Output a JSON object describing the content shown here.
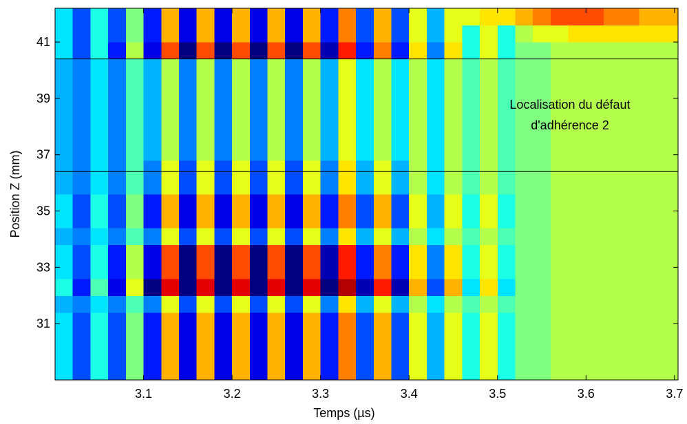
{
  "chart_data": {
    "type": "heatmap",
    "xlabel": "Temps (µs)",
    "ylabel": "Position Z (mm)",
    "xlim": [
      3.0,
      3.704
    ],
    "ylim": [
      29.0,
      42.2
    ],
    "xticks": [
      3.1,
      3.2,
      3.3,
      3.4,
      3.5,
      3.6,
      3.7
    ],
    "yticks": [
      31,
      33,
      35,
      37,
      39,
      41
    ],
    "colorscale": "jet",
    "zlim": [
      -10,
      10
    ],
    "hlines": [
      40.4,
      36.4
    ],
    "annotation": [
      "Localisation du défaut",
      "d'adhérence 2"
    ],
    "x": [
      3.01,
      3.03,
      3.05,
      3.07,
      3.09,
      3.11,
      3.13,
      3.15,
      3.17,
      3.19,
      3.21,
      3.23,
      3.25,
      3.27,
      3.29,
      3.31,
      3.33,
      3.35,
      3.37,
      3.39,
      3.41,
      3.43,
      3.45,
      3.47,
      3.49,
      3.51,
      3.53,
      3.55,
      3.57,
      3.59,
      3.61,
      3.63,
      3.65,
      3.67,
      3.69
    ],
    "y": [
      29.3,
      29.9,
      30.5,
      31.1,
      31.7,
      32.3,
      32.9,
      33.5,
      34.1,
      34.7,
      35.3,
      35.9,
      36.5,
      37.1,
      37.7,
      38.3,
      38.9,
      39.5,
      40.1,
      40.7,
      41.3,
      41.9
    ],
    "z": [
      [
        -3,
        -6,
        -2,
        -6,
        0,
        -7,
        4,
        -8,
        4,
        -8,
        4,
        -8,
        4,
        -8,
        4,
        -7,
        5,
        -6,
        4,
        -6,
        2,
        -4,
        2,
        -2,
        2,
        -2,
        0,
        0,
        1,
        1,
        1,
        1,
        1,
        1,
        1
      ],
      [
        -3,
        -6,
        -2,
        -6,
        0,
        -7,
        4,
        -8,
        4,
        -8,
        4,
        -8,
        4,
        -8,
        4,
        -7,
        5,
        -6,
        4,
        -6,
        2,
        -4,
        2,
        -2,
        2,
        -2,
        0,
        0,
        1,
        1,
        1,
        1,
        1,
        1,
        1
      ],
      [
        -3,
        -6,
        -2,
        -6,
        0,
        -7,
        4,
        -8,
        4,
        -8,
        4,
        -8,
        4,
        -8,
        4,
        -7,
        5,
        -6,
        4,
        -6,
        2,
        -4,
        2,
        -2,
        2,
        -2,
        0,
        0,
        1,
        1,
        1,
        1,
        1,
        1,
        1
      ],
      [
        -3,
        -6,
        -2,
        -6,
        0,
        -7,
        4,
        -8,
        4,
        -8,
        4,
        -8,
        4,
        -8,
        4,
        -7,
        5,
        -6,
        4,
        -6,
        2,
        -4,
        2,
        -2,
        2,
        -2,
        0,
        0,
        1,
        1,
        1,
        1,
        1,
        1,
        1
      ],
      [
        -4,
        -5,
        -3,
        -5,
        -1,
        -5,
        2,
        -6,
        2,
        -6,
        2,
        -6,
        2,
        -6,
        2,
        -5,
        3,
        -4,
        2,
        -4,
        1,
        -3,
        1,
        -1,
        1,
        -1,
        0,
        0,
        1,
        1,
        1,
        1,
        1,
        1,
        1
      ],
      [
        -2,
        -7,
        -1,
        -8,
        2,
        -10,
        8,
        -10,
        8,
        -10,
        8,
        -10,
        8,
        -10,
        8,
        -10,
        9,
        -9,
        7,
        -9,
        4,
        -6,
        4,
        -3,
        3,
        -3,
        0,
        0,
        1,
        1,
        1,
        1,
        1,
        1,
        1
      ],
      [
        -3,
        -6,
        -2,
        -7,
        1,
        -8,
        6,
        -10,
        6,
        -10,
        6,
        -10,
        6,
        -10,
        6,
        -9,
        7,
        -7,
        5,
        -7,
        3,
        -5,
        3,
        -2,
        2,
        -2,
        0,
        0,
        1,
        1,
        1,
        1,
        1,
        1,
        1
      ],
      [
        -3,
        -6,
        -2,
        -7,
        1,
        -8,
        6,
        -10,
        6,
        -10,
        6,
        -10,
        6,
        -10,
        6,
        -9,
        7,
        -7,
        5,
        -7,
        3,
        -5,
        3,
        -2,
        2,
        -2,
        0,
        0,
        1,
        1,
        1,
        1,
        1,
        1,
        1
      ],
      [
        -4,
        -5,
        -3,
        -5,
        -1,
        -5,
        2,
        -6,
        2,
        -6,
        2,
        -6,
        2,
        -6,
        2,
        -5,
        3,
        -4,
        2,
        -4,
        1,
        -3,
        1,
        -1,
        1,
        -1,
        0,
        0,
        1,
        1,
        1,
        1,
        1,
        1,
        1
      ],
      [
        -3,
        -6,
        -2,
        -6,
        0,
        -7,
        4,
        -8,
        4,
        -8,
        4,
        -8,
        4,
        -8,
        4,
        -7,
        5,
        -6,
        4,
        -6,
        2,
        -4,
        2,
        -2,
        2,
        -2,
        0,
        0,
        1,
        1,
        1,
        1,
        1,
        1,
        1
      ],
      [
        -3,
        -6,
        -2,
        -6,
        0,
        -7,
        4,
        -8,
        4,
        -8,
        4,
        -8,
        4,
        -8,
        4,
        -7,
        5,
        -6,
        4,
        -6,
        2,
        -4,
        2,
        -2,
        2,
        -2,
        0,
        0,
        1,
        1,
        1,
        1,
        1,
        1,
        1
      ],
      [
        -4,
        -5,
        -3,
        -5,
        -1,
        -5,
        2,
        -6,
        2,
        -6,
        2,
        -6,
        2,
        -6,
        2,
        -5,
        3,
        -4,
        2,
        -4,
        1,
        -3,
        1,
        -1,
        1,
        -1,
        0,
        0,
        1,
        1,
        1,
        1,
        1,
        1,
        1
      ],
      [
        -4,
        -5,
        -3,
        -5,
        -1,
        -5,
        2,
        -6,
        2,
        -6,
        2,
        -6,
        2,
        -6,
        2,
        -5,
        3,
        -4,
        2,
        -4,
        1,
        -3,
        1,
        -1,
        1,
        -1,
        0,
        0,
        1,
        1,
        1,
        1,
        1,
        1,
        1
      ],
      [
        -4,
        -5,
        -3,
        -5,
        -1,
        -4,
        1,
        -5,
        1,
        -5,
        1,
        -5,
        1,
        -5,
        1,
        -4,
        2,
        -3,
        1,
        -3,
        1,
        -3,
        1,
        -1,
        1,
        -1,
        0,
        0,
        1,
        1,
        1,
        1,
        1,
        1,
        1
      ],
      [
        -4,
        -5,
        -3,
        -5,
        -1,
        -4,
        1,
        -5,
        1,
        -5,
        1,
        -5,
        1,
        -5,
        1,
        -4,
        2,
        -3,
        1,
        -3,
        1,
        -3,
        1,
        -1,
        1,
        -1,
        0,
        0,
        1,
        1,
        1,
        1,
        1,
        1,
        1
      ],
      [
        -4,
        -5,
        -3,
        -5,
        -1,
        -4,
        1,
        -5,
        1,
        -5,
        1,
        -5,
        1,
        -5,
        1,
        -4,
        2,
        -3,
        1,
        -3,
        1,
        -3,
        1,
        -1,
        1,
        -1,
        0,
        0,
        1,
        1,
        1,
        1,
        1,
        1,
        1
      ],
      [
        -4,
        -5,
        -3,
        -5,
        -1,
        -4,
        1,
        -5,
        1,
        -5,
        1,
        -5,
        1,
        -5,
        1,
        -4,
        2,
        -3,
        1,
        -3,
        1,
        -3,
        1,
        -1,
        1,
        -1,
        0,
        0,
        1,
        1,
        1,
        1,
        1,
        1,
        1
      ],
      [
        -4,
        -5,
        -3,
        -5,
        -1,
        -4,
        1,
        -5,
        1,
        -5,
        1,
        -5,
        1,
        -5,
        1,
        -4,
        2,
        -3,
        1,
        -3,
        1,
        -3,
        1,
        -1,
        1,
        -1,
        0,
        0,
        1,
        1,
        1,
        1,
        1,
        1,
        1
      ],
      [
        -4,
        -5,
        -3,
        -5,
        -1,
        -4,
        1,
        -5,
        1,
        -5,
        1,
        -5,
        1,
        -5,
        1,
        -4,
        2,
        -3,
        1,
        -3,
        1,
        -3,
        1,
        -1,
        1,
        -1,
        0,
        0,
        1,
        1,
        1,
        1,
        1,
        1,
        1
      ],
      [
        -3,
        -6,
        -2,
        -7,
        1,
        -8,
        6,
        -10,
        6,
        -10,
        6,
        -10,
        6,
        -10,
        6,
        -9,
        7,
        -7,
        5,
        -7,
        3,
        -5,
        3,
        -2,
        2,
        -2,
        0,
        0,
        1,
        1,
        1,
        1,
        1,
        1,
        1
      ],
      [
        -3,
        -6,
        -2,
        -6,
        0,
        -7,
        4,
        -8,
        4,
        -8,
        4,
        -8,
        4,
        -8,
        4,
        -7,
        5,
        -6,
        4,
        -6,
        2,
        -4,
        2,
        -2,
        2,
        -2,
        1,
        2,
        2,
        3,
        3,
        3,
        3,
        3,
        3
      ],
      [
        -3,
        -6,
        -2,
        -6,
        0,
        -7,
        4,
        -8,
        4,
        -8,
        4,
        -8,
        4,
        -8,
        4,
        -7,
        5,
        -6,
        4,
        -6,
        2,
        -4,
        2,
        2,
        3,
        3,
        4,
        5,
        6,
        6,
        6,
        5,
        5,
        4,
        4
      ]
    ]
  }
}
